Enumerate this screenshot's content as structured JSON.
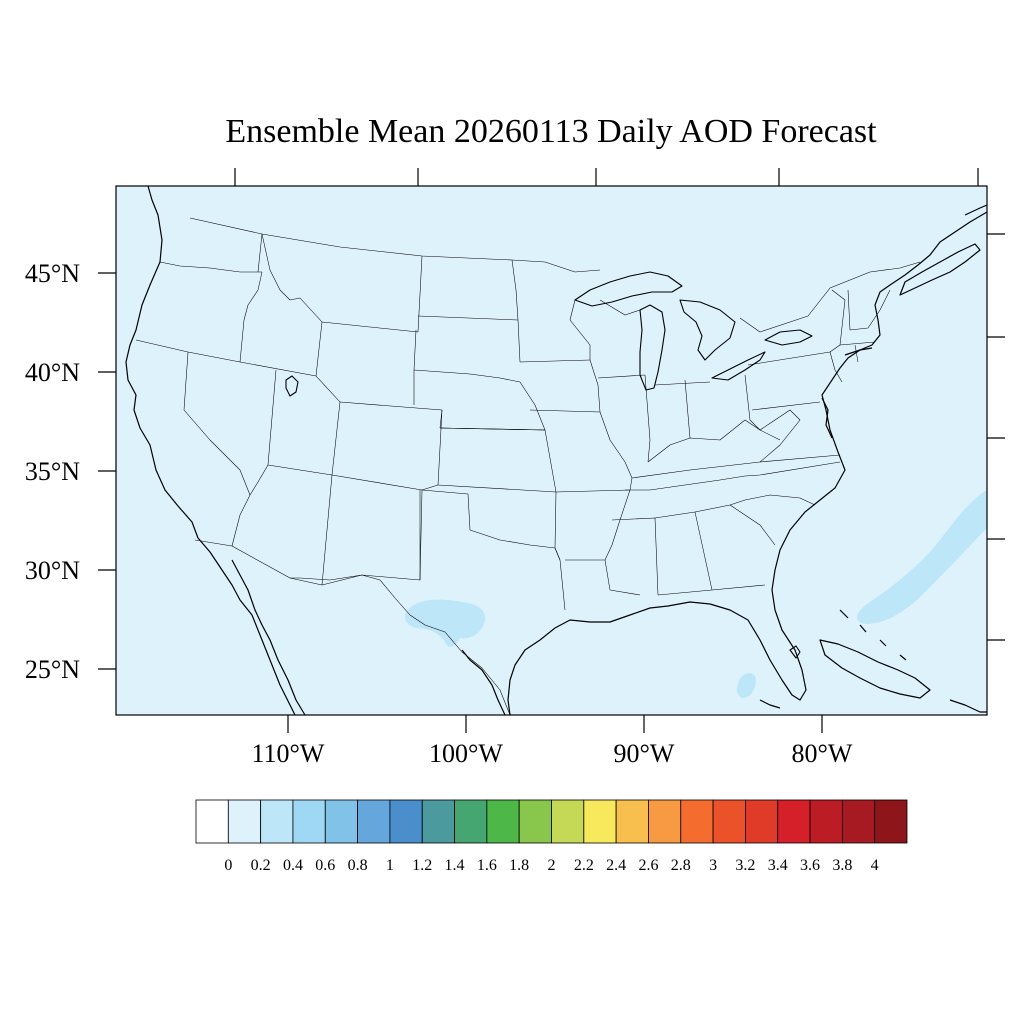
{
  "title": "Ensemble Mean 20260113 Daily AOD Forecast",
  "lat_labels": [
    "45°N",
    "40°N",
    "35°N",
    "30°N",
    "25°N"
  ],
  "lon_labels": [
    "110°W",
    "100°W",
    "90°W",
    "80°W"
  ],
  "colorbar": {
    "tick_labels": [
      "0",
      "0.2",
      "0.4",
      "0.6",
      "0.8",
      "1",
      "1.2",
      "1.4",
      "1.6",
      "1.8",
      "2",
      "2.2",
      "2.4",
      "2.6",
      "2.8",
      "3",
      "3.2",
      "3.4",
      "3.6",
      "3.8",
      "4"
    ],
    "colors": [
      "#ffffff",
      "#def2fc",
      "#bde6f8",
      "#9fd8f4",
      "#80c2e8",
      "#65a6dc",
      "#4a8fcc",
      "#4a9a9e",
      "#46a672",
      "#4db848",
      "#88c64c",
      "#c5d957",
      "#f8e85c",
      "#f8bf4e",
      "#f79a42",
      "#f46d2f",
      "#ec5229",
      "#e03a28",
      "#d52029",
      "#bc1c24",
      "#a71a21",
      "#8e151a"
    ]
  },
  "colors": {
    "background_field": "#def2fc",
    "plume": "#bde6f8",
    "boundary": "#000000"
  }
}
